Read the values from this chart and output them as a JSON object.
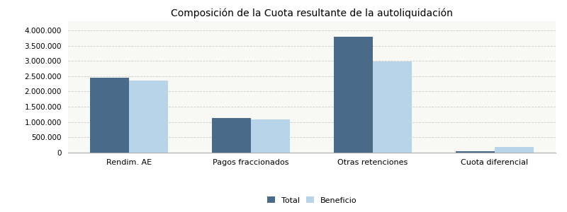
{
  "title": "Composición de la Cuota resultante de la autoliquidación",
  "categories": [
    "Rendim. AE",
    "Pagos fraccionados",
    "Otras retenciones",
    "Cuota diferencial"
  ],
  "total_values": [
    2450000,
    1130000,
    3780000,
    50000
  ],
  "beneficio_values": [
    2350000,
    1080000,
    2980000,
    195000
  ],
  "total_color": "#4a6a8a",
  "beneficio_color": "#b8d4e8",
  "bar_width": 0.32,
  "ylim": [
    0,
    4300000
  ],
  "yticks": [
    0,
    500000,
    1000000,
    1500000,
    2000000,
    2500000,
    3000000,
    3500000,
    4000000
  ],
  "grid_color": "#cccccc",
  "background_color": "#ffffff",
  "plot_background": "#f8f8f5",
  "legend_labels": [
    "Total",
    "Beneficio"
  ],
  "title_fontsize": 10,
  "tick_fontsize": 7.5,
  "xtick_fontsize": 8
}
